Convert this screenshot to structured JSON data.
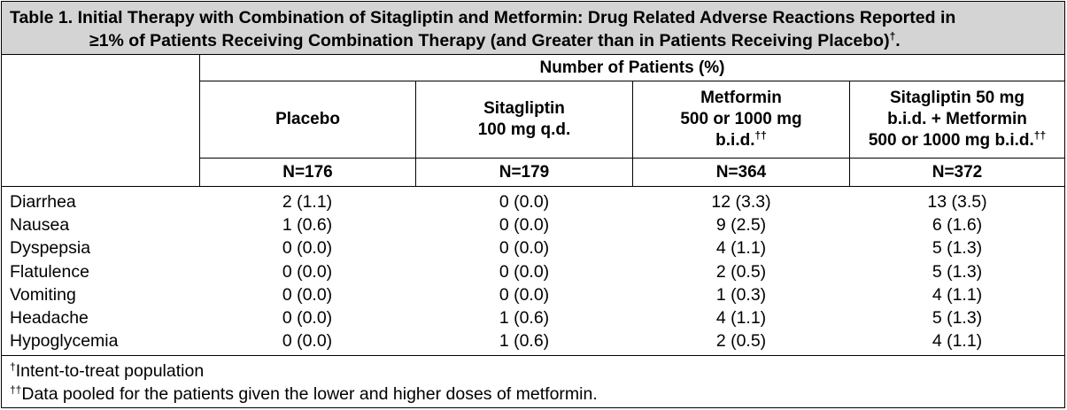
{
  "caption": {
    "line1": "Table 1. Initial Therapy with Combination of Sitagliptin and Metformin: Drug Related Adverse Reactions Reported in",
    "line2": "≥1% of Patients Receiving Combination Therapy (and Greater than in Patients Receiving Placebo)",
    "line2_mark": "†",
    "line2_end": "."
  },
  "header": {
    "group": "Number of Patients (%)",
    "col1": {
      "line1": "Placebo",
      "n": "N=176"
    },
    "col2": {
      "line1": "Sitagliptin",
      "line2": "100 mg q.d.",
      "n": "N=179"
    },
    "col3": {
      "line1": "Metformin",
      "line2": "500 or 1000 mg",
      "line3": "b.i.d.",
      "mark": "††",
      "n": "N=364"
    },
    "col4": {
      "line1": "Sitagliptin 50 mg",
      "line2": "b.i.d. + Metformin",
      "line3": "500 or 1000 mg b.i.d.",
      "mark": "††",
      "n": "N=372"
    }
  },
  "rows": [
    {
      "label": "Diarrhea",
      "values": [
        "2 (1.1)",
        "0 (0.0)",
        "12 (3.3)",
        "13 (3.5)"
      ]
    },
    {
      "label": "Nausea",
      "values": [
        "1 (0.6)",
        "0 (0.0)",
        "9 (2.5)",
        "6 (1.6)"
      ]
    },
    {
      "label": "Dyspepsia",
      "values": [
        "0 (0.0)",
        "0 (0.0)",
        "4 (1.1)",
        "5 (1.3)"
      ]
    },
    {
      "label": "Flatulence",
      "values": [
        "0 (0.0)",
        "0 (0.0)",
        "2 (0.5)",
        "5 (1.3)"
      ]
    },
    {
      "label": "Vomiting",
      "values": [
        "0 (0.0)",
        "0 (0.0)",
        "1 (0.3)",
        "4 (1.1)"
      ]
    },
    {
      "label": "Headache",
      "values": [
        "0 (0.0)",
        "1 (0.6)",
        "4 (1.1)",
        "5 (1.3)"
      ]
    },
    {
      "label": "Hypoglycemia",
      "values": [
        "0 (0.0)",
        "1 (0.6)",
        "2 (0.5)",
        "4 (1.1)"
      ]
    }
  ],
  "footnotes": [
    {
      "mark": "†",
      "text": "Intent-to-treat population"
    },
    {
      "mark": "††",
      "text": "Data pooled for the patients given the lower and higher doses of metformin."
    }
  ],
  "colors": {
    "caption_bg": "#d4d4d4",
    "border": "#000000"
  }
}
